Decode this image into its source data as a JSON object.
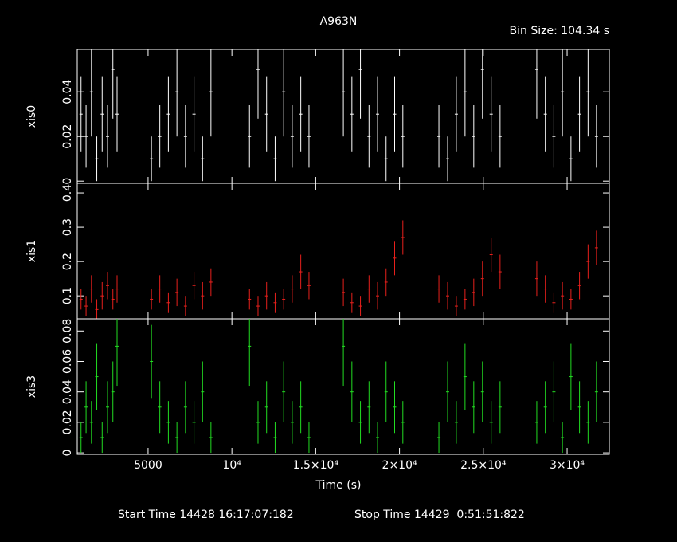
{
  "chart_data": [
    {
      "type": "errorbar",
      "title": "A963N",
      "subtitle": "Bin Size: 104.34 s",
      "ylabel": "xis0",
      "xlim": [
        774,
        32517
      ],
      "ylim": [
        -0.001,
        0.059
      ],
      "yticks": [
        0,
        0.02,
        0.04
      ],
      "x": [
        1000,
        1300,
        1620,
        1940,
        2260,
        2580,
        2900,
        3150,
        5200,
        5700,
        6210,
        6720,
        7230,
        7740,
        8250,
        8750,
        11050,
        11560,
        12070,
        12580,
        13090,
        13600,
        14110,
        14600,
        16650,
        17160,
        17670,
        18180,
        18690,
        19200,
        19710,
        20200,
        22350,
        22870,
        23390,
        23910,
        24430,
        24950,
        25470,
        26000,
        28190,
        28700,
        29210,
        29720,
        30230,
        30740,
        31250,
        31750
      ],
      "series": [
        {
          "color": "#ffffff",
          "values": [
            0.03,
            0.02,
            0.04,
            0.01,
            0.03,
            0.02,
            0.05,
            0.03,
            0.01,
            0.02,
            0.03,
            0.04,
            0.02,
            0.03,
            0.01,
            0.04,
            0.02,
            0.05,
            0.03,
            0.01,
            0.04,
            0.02,
            0.03,
            0.02,
            0.04,
            0.03,
            0.05,
            0.02,
            0.03,
            0.01,
            0.03,
            0.02,
            0.02,
            0.01,
            0.03,
            0.04,
            0.02,
            0.05,
            0.03,
            0.02,
            0.05,
            0.03,
            0.02,
            0.04,
            0.01,
            0.03,
            0.04,
            0.02
          ],
          "errors": [
            0.017,
            0.014,
            0.02,
            0.01,
            0.017,
            0.014,
            0.022,
            0.017,
            0.01,
            0.014,
            0.017,
            0.02,
            0.014,
            0.017,
            0.01,
            0.02,
            0.014,
            0.022,
            0.017,
            0.01,
            0.02,
            0.014,
            0.017,
            0.014,
            0.02,
            0.017,
            0.022,
            0.014,
            0.017,
            0.01,
            0.017,
            0.014,
            0.014,
            0.01,
            0.017,
            0.02,
            0.014,
            0.022,
            0.017,
            0.014,
            0.022,
            0.017,
            0.014,
            0.02,
            0.01,
            0.017,
            0.02,
            0.014
          ]
        }
      ]
    },
    {
      "type": "errorbar",
      "ylabel": "xis1",
      "xlim": [
        774,
        32517
      ],
      "ylim": [
        0.033,
        0.428
      ],
      "yticks": [
        0.1,
        0.2,
        0.3,
        0.4
      ],
      "x": [
        1000,
        1300,
        1620,
        1940,
        2260,
        2580,
        2900,
        3150,
        5200,
        5700,
        6210,
        6720,
        7230,
        7740,
        8250,
        8750,
        11050,
        11560,
        12070,
        12580,
        13090,
        13600,
        14110,
        14600,
        16650,
        17160,
        17670,
        18180,
        18690,
        19200,
        19710,
        20200,
        22350,
        22870,
        23390,
        23910,
        24430,
        24950,
        25470,
        26000,
        28190,
        28700,
        29210,
        29720,
        30230,
        30740,
        31250,
        31750
      ],
      "series": [
        {
          "color": "#e8201c",
          "values": [
            0.09,
            0.07,
            0.12,
            0.06,
            0.1,
            0.13,
            0.09,
            0.12,
            0.09,
            0.12,
            0.08,
            0.11,
            0.07,
            0.13,
            0.1,
            0.14,
            0.09,
            0.07,
            0.1,
            0.08,
            0.09,
            0.12,
            0.17,
            0.13,
            0.11,
            0.08,
            0.07,
            0.12,
            0.1,
            0.14,
            0.21,
            0.27,
            0.12,
            0.1,
            0.07,
            0.09,
            0.11,
            0.15,
            0.22,
            0.17,
            0.15,
            0.12,
            0.08,
            0.1,
            0.09,
            0.13,
            0.2,
            0.24
          ],
          "errors": [
            0.03,
            0.03,
            0.04,
            0.03,
            0.04,
            0.04,
            0.03,
            0.04,
            0.03,
            0.04,
            0.03,
            0.04,
            0.03,
            0.04,
            0.04,
            0.04,
            0.03,
            0.03,
            0.04,
            0.03,
            0.03,
            0.04,
            0.05,
            0.04,
            0.04,
            0.03,
            0.03,
            0.04,
            0.04,
            0.04,
            0.05,
            0.05,
            0.04,
            0.04,
            0.03,
            0.03,
            0.04,
            0.05,
            0.05,
            0.05,
            0.05,
            0.04,
            0.03,
            0.04,
            0.03,
            0.04,
            0.05,
            0.05
          ]
        }
      ]
    },
    {
      "type": "errorbar",
      "ylabel": "xis3",
      "xlabel": "Time (s)",
      "footer_start": "Start Time 14428 16:17:07:182",
      "footer_stop": "Stop Time 14429  0:51:51:822",
      "xlim": [
        774,
        32517
      ],
      "xticks": [
        5000,
        {
          "value": 10000,
          "label": "10⁴"
        },
        {
          "value": 15000,
          "label": "1.5×10⁴"
        },
        {
          "value": 20000,
          "label": "2×10⁴"
        },
        {
          "value": 25000,
          "label": "2.5×10⁴"
        },
        {
          "value": 30000,
          "label": "3×10⁴"
        }
      ],
      "ylim": [
        -0.001,
        0.088
      ],
      "yticks": [
        0,
        0.02,
        0.04,
        0.06,
        0.08
      ],
      "x": [
        1000,
        1300,
        1620,
        1940,
        2260,
        2580,
        2900,
        3150,
        5200,
        5700,
        6210,
        6720,
        7230,
        7740,
        8250,
        8750,
        11050,
        11560,
        12070,
        12580,
        13090,
        13600,
        14110,
        14600,
        16650,
        17160,
        17670,
        18180,
        18690,
        19200,
        19710,
        20200,
        22350,
        22870,
        23390,
        23910,
        24430,
        24950,
        25470,
        26000,
        28190,
        28700,
        29210,
        29720,
        30230,
        30740,
        31250,
        31750
      ],
      "series": [
        {
          "color": "#22dd22",
          "values": [
            0.01,
            0.03,
            0.02,
            0.05,
            0.01,
            0.03,
            0.04,
            0.07,
            0.06,
            0.03,
            0.02,
            0.01,
            0.03,
            0.02,
            0.04,
            0.01,
            0.07,
            0.02,
            0.03,
            0.01,
            0.04,
            0.02,
            0.03,
            0.01,
            0.07,
            0.04,
            0.02,
            0.03,
            0.01,
            0.04,
            0.03,
            0.02,
            0.01,
            0.04,
            0.02,
            0.05,
            0.03,
            0.04,
            0.02,
            0.03,
            0.02,
            0.03,
            0.04,
            0.01,
            0.05,
            0.03,
            0.02,
            0.04
          ],
          "errors": [
            0.01,
            0.017,
            0.014,
            0.022,
            0.01,
            0.017,
            0.02,
            0.026,
            0.024,
            0.017,
            0.014,
            0.01,
            0.017,
            0.014,
            0.02,
            0.01,
            0.026,
            0.014,
            0.017,
            0.01,
            0.02,
            0.014,
            0.017,
            0.01,
            0.026,
            0.02,
            0.014,
            0.017,
            0.01,
            0.02,
            0.017,
            0.014,
            0.01,
            0.02,
            0.014,
            0.022,
            0.017,
            0.02,
            0.014,
            0.017,
            0.014,
            0.017,
            0.02,
            0.01,
            0.022,
            0.017,
            0.014,
            0.02
          ]
        }
      ]
    }
  ]
}
